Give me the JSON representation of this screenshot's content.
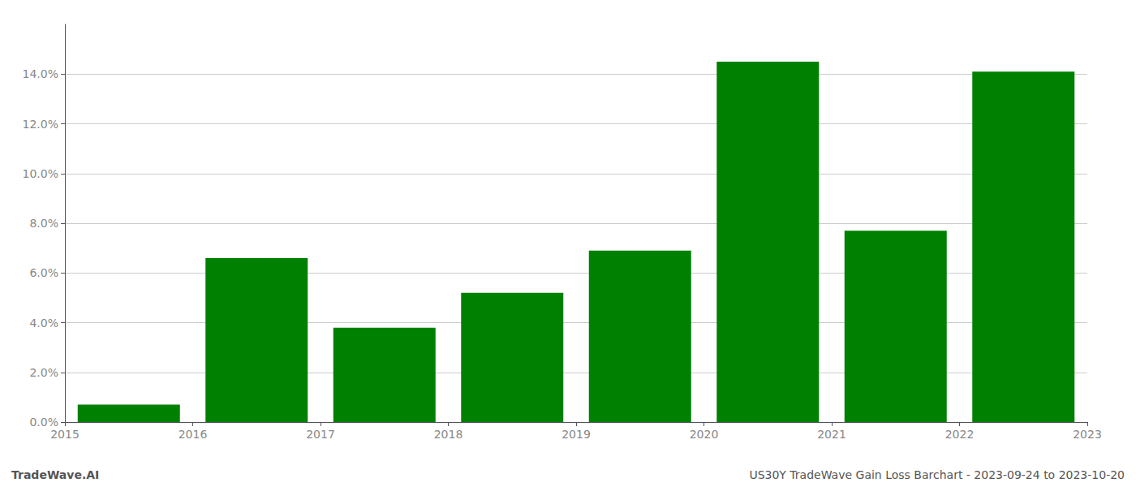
{
  "chart_data": {
    "type": "bar",
    "categories": [
      "2015",
      "2016",
      "2017",
      "2018",
      "2019",
      "2020",
      "2021",
      "2022",
      "2023"
    ],
    "values": [
      0.007,
      0.066,
      0.038,
      0.052,
      0.069,
      0.145,
      0.077,
      0.141,
      null
    ],
    "color": "#008000",
    "ylim": [
      0,
      0.16
    ],
    "yticks": [
      {
        "value": 0.0,
        "label": "0.0%"
      },
      {
        "value": 0.02,
        "label": "2.0%"
      },
      {
        "value": 0.04,
        "label": "4.0%"
      },
      {
        "value": 0.06,
        "label": "6.0%"
      },
      {
        "value": 0.08,
        "label": "8.0%"
      },
      {
        "value": 0.1,
        "label": "10.0%"
      },
      {
        "value": 0.12,
        "label": "12.0%"
      },
      {
        "value": 0.14,
        "label": "14.0%"
      }
    ],
    "grid": true,
    "annotations": [
      "TradeWave.AI",
      "US30Y TradeWave Gain Loss Barchart - 2023-09-24 to 2023-10-20"
    ]
  }
}
